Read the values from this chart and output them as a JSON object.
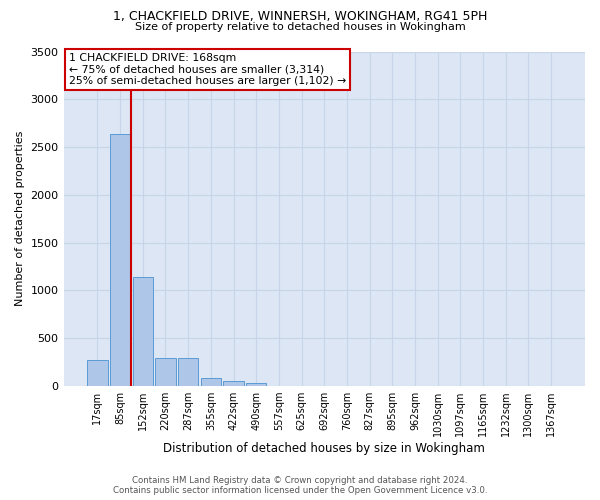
{
  "title": "1, CHACKFIELD DRIVE, WINNERSH, WOKINGHAM, RG41 5PH",
  "subtitle": "Size of property relative to detached houses in Wokingham",
  "xlabel": "Distribution of detached houses by size in Wokingham",
  "ylabel": "Number of detached properties",
  "footer_line1": "Contains HM Land Registry data © Crown copyright and database right 2024.",
  "footer_line2": "Contains public sector information licensed under the Open Government Licence v3.0.",
  "bar_labels": [
    "17sqm",
    "85sqm",
    "152sqm",
    "220sqm",
    "287sqm",
    "355sqm",
    "422sqm",
    "490sqm",
    "557sqm",
    "625sqm",
    "692sqm",
    "760sqm",
    "827sqm",
    "895sqm",
    "962sqm",
    "1030sqm",
    "1097sqm",
    "1165sqm",
    "1232sqm",
    "1300sqm",
    "1367sqm"
  ],
  "bar_values": [
    270,
    2640,
    1140,
    290,
    290,
    85,
    50,
    35,
    0,
    0,
    0,
    0,
    0,
    0,
    0,
    0,
    0,
    0,
    0,
    0,
    0
  ],
  "bar_color": "#aec6e8",
  "bar_edge_color": "#5b9bd5",
  "grid_color": "#c8d4e8",
  "background_color": "#dce6f5",
  "annotation_text": "1 CHACKFIELD DRIVE: 168sqm\n← 75% of detached houses are smaller (3,314)\n25% of semi-detached houses are larger (1,102) →",
  "vline_color": "#cc0000",
  "annotation_box_edge_color": "#cc0000",
  "ylim": [
    0,
    3500
  ],
  "yticks": [
    0,
    500,
    1000,
    1500,
    2000,
    2500,
    3000,
    3500
  ]
}
